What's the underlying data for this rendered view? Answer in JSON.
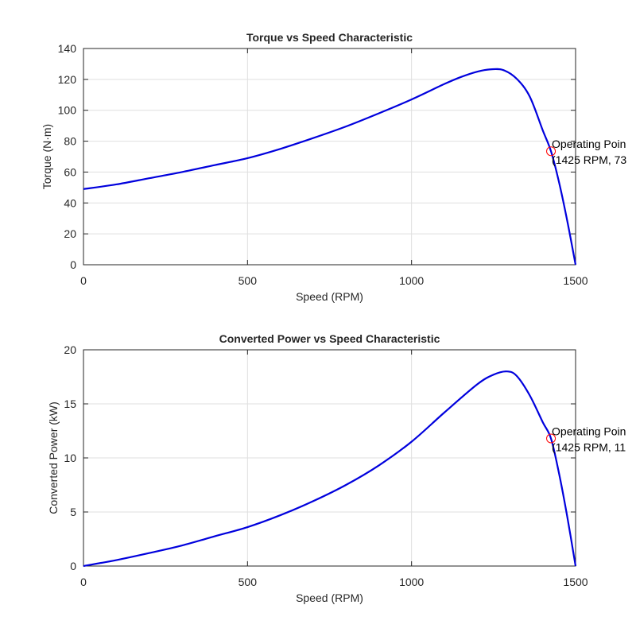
{
  "chart_data": [
    {
      "type": "line",
      "title": "Torque vs Speed Characteristic",
      "xlabel": "Speed (RPM)",
      "ylabel": "Torque (N·m)",
      "xlim": [
        0,
        1500
      ],
      "ylim": [
        0,
        140
      ],
      "xticks": [
        0,
        500,
        1000,
        1500
      ],
      "yticks": [
        0,
        20,
        40,
        60,
        80,
        100,
        120,
        140
      ],
      "xtick_labels": [
        "0",
        "500",
        "1000",
        "1500"
      ],
      "ytick_labels": [
        "0",
        "20",
        "40",
        "60",
        "80",
        "100",
        "120",
        "140"
      ],
      "grid": true,
      "series": [
        {
          "color": "#0000dd",
          "x": [
            0,
            100,
            200,
            300,
            400,
            500,
            600,
            700,
            800,
            900,
            1000,
            1100,
            1150,
            1200,
            1240,
            1280,
            1320,
            1360,
            1400,
            1425,
            1450,
            1475,
            1500
          ],
          "y": [
            49,
            52,
            56,
            60,
            64.5,
            69,
            75,
            82,
            89.5,
            98,
            107,
            117,
            121.5,
            125,
            126.5,
            126,
            120.5,
            109,
            87,
            73.5,
            53,
            28,
            0
          ]
        }
      ],
      "annotation": {
        "marker_x": 1425,
        "marker_y": 73.5,
        "marker_color": "#ff0000",
        "line1": "Operating Poin",
        "line2": "(1425 RPM, 73"
      }
    },
    {
      "type": "line",
      "title": "Converted Power vs Speed Characteristic",
      "xlabel": "Speed (RPM)",
      "ylabel": "Converted Power (kW)",
      "xlim": [
        0,
        1500
      ],
      "ylim": [
        0,
        20
      ],
      "xticks": [
        0,
        500,
        1000,
        1500
      ],
      "yticks": [
        0,
        5,
        10,
        15,
        20
      ],
      "xtick_labels": [
        "0",
        "500",
        "1000",
        "1500"
      ],
      "ytick_labels": [
        "0",
        "5",
        "10",
        "15",
        "20"
      ],
      "grid": true,
      "series": [
        {
          "color": "#0000dd",
          "x": [
            0,
            100,
            200,
            300,
            400,
            500,
            600,
            700,
            800,
            900,
            1000,
            1100,
            1200,
            1250,
            1290,
            1320,
            1360,
            1400,
            1425,
            1450,
            1475,
            1500
          ],
          "y": [
            0,
            0.55,
            1.2,
            1.9,
            2.75,
            3.6,
            4.7,
            6.0,
            7.5,
            9.3,
            11.5,
            14.2,
            16.8,
            17.7,
            18.0,
            17.6,
            15.8,
            13.3,
            11.8,
            8.5,
            4.5,
            0
          ]
        }
      ],
      "annotation": {
        "marker_x": 1425,
        "marker_y": 11.8,
        "marker_color": "#ff0000",
        "line1": "Operating Poin",
        "line2": "(1425 RPM, 11"
      }
    }
  ]
}
